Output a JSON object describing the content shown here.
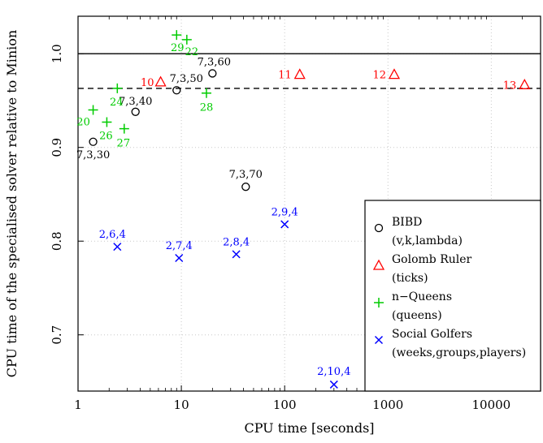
{
  "chart_data": {
    "type": "scatter",
    "xlabel": "CPU time [seconds]",
    "ylabel": "CPU time of the specialised solver relative to Minion",
    "xscale": "log",
    "xlim": [
      1,
      30000
    ],
    "ylim": [
      0.64,
      1.04
    ],
    "xticks": [
      {
        "v": 1,
        "label": "1"
      },
      {
        "v": 10,
        "label": "10"
      },
      {
        "v": 100,
        "label": "100"
      },
      {
        "v": 1000,
        "label": "1000"
      },
      {
        "v": 10000,
        "label": "10000"
      }
    ],
    "yticks": [
      {
        "v": 0.7,
        "label": "0.7"
      },
      {
        "v": 0.8,
        "label": "0.8"
      },
      {
        "v": 0.9,
        "label": "0.9"
      },
      {
        "v": 1.0,
        "label": "1.0"
      }
    ],
    "grid": true,
    "reference_lines": [
      {
        "y": 1.0,
        "style": "solid"
      },
      {
        "y": 0.963,
        "style": "dashed"
      }
    ],
    "legend_position": "bottom-right",
    "series": [
      {
        "name": "BIBD",
        "subname": "(v,k,lambda)",
        "marker": "circle",
        "color": "#000000",
        "points": [
          {
            "x": 1.4,
            "y": 0.906,
            "label": "7,3,30"
          },
          {
            "x": 3.6,
            "y": 0.938,
            "label": "7,3,40"
          },
          {
            "x": 9,
            "y": 0.961,
            "label": "7,3,50"
          },
          {
            "x": 20,
            "y": 0.979,
            "label": "7,3,60"
          },
          {
            "x": 42,
            "y": 0.858,
            "label": "7,3,70"
          }
        ]
      },
      {
        "name": "Golomb Ruler",
        "subname": "(ticks)",
        "marker": "triangle",
        "color": "#ff0000",
        "points": [
          {
            "x": 6.3,
            "y": 0.97,
            "label": "10"
          },
          {
            "x": 140,
            "y": 0.978,
            "label": "11"
          },
          {
            "x": 1150,
            "y": 0.978,
            "label": "12"
          },
          {
            "x": 21000,
            "y": 0.967,
            "label": "13"
          }
        ]
      },
      {
        "name": "n−Queens",
        "subname": "(queens)",
        "marker": "plus",
        "color": "#00cc00",
        "points": [
          {
            "x": 1.4,
            "y": 0.94,
            "label": "20"
          },
          {
            "x": 2.4,
            "y": 0.963,
            "label": "24"
          },
          {
            "x": 1.9,
            "y": 0.927,
            "label": "26"
          },
          {
            "x": 2.8,
            "y": 0.92,
            "label": "27"
          },
          {
            "x": 17.5,
            "y": 0.958,
            "label": "28"
          },
          {
            "x": 9,
            "y": 1.02,
            "label": "29"
          },
          {
            "x": 11.3,
            "y": 1.015,
            "label": "22"
          }
        ]
      },
      {
        "name": "Social Golfers",
        "subname": "(weeks,groups,players)",
        "marker": "cross",
        "color": "#0000ff",
        "points": [
          {
            "x": 2.4,
            "y": 0.794,
            "label": "2,6,4"
          },
          {
            "x": 9.5,
            "y": 0.782,
            "label": "2,7,4"
          },
          {
            "x": 34,
            "y": 0.786,
            "label": "2,8,4"
          },
          {
            "x": 100,
            "y": 0.818,
            "label": "2,9,4"
          },
          {
            "x": 300,
            "y": 0.647,
            "label": "2,10,4"
          }
        ]
      }
    ]
  }
}
